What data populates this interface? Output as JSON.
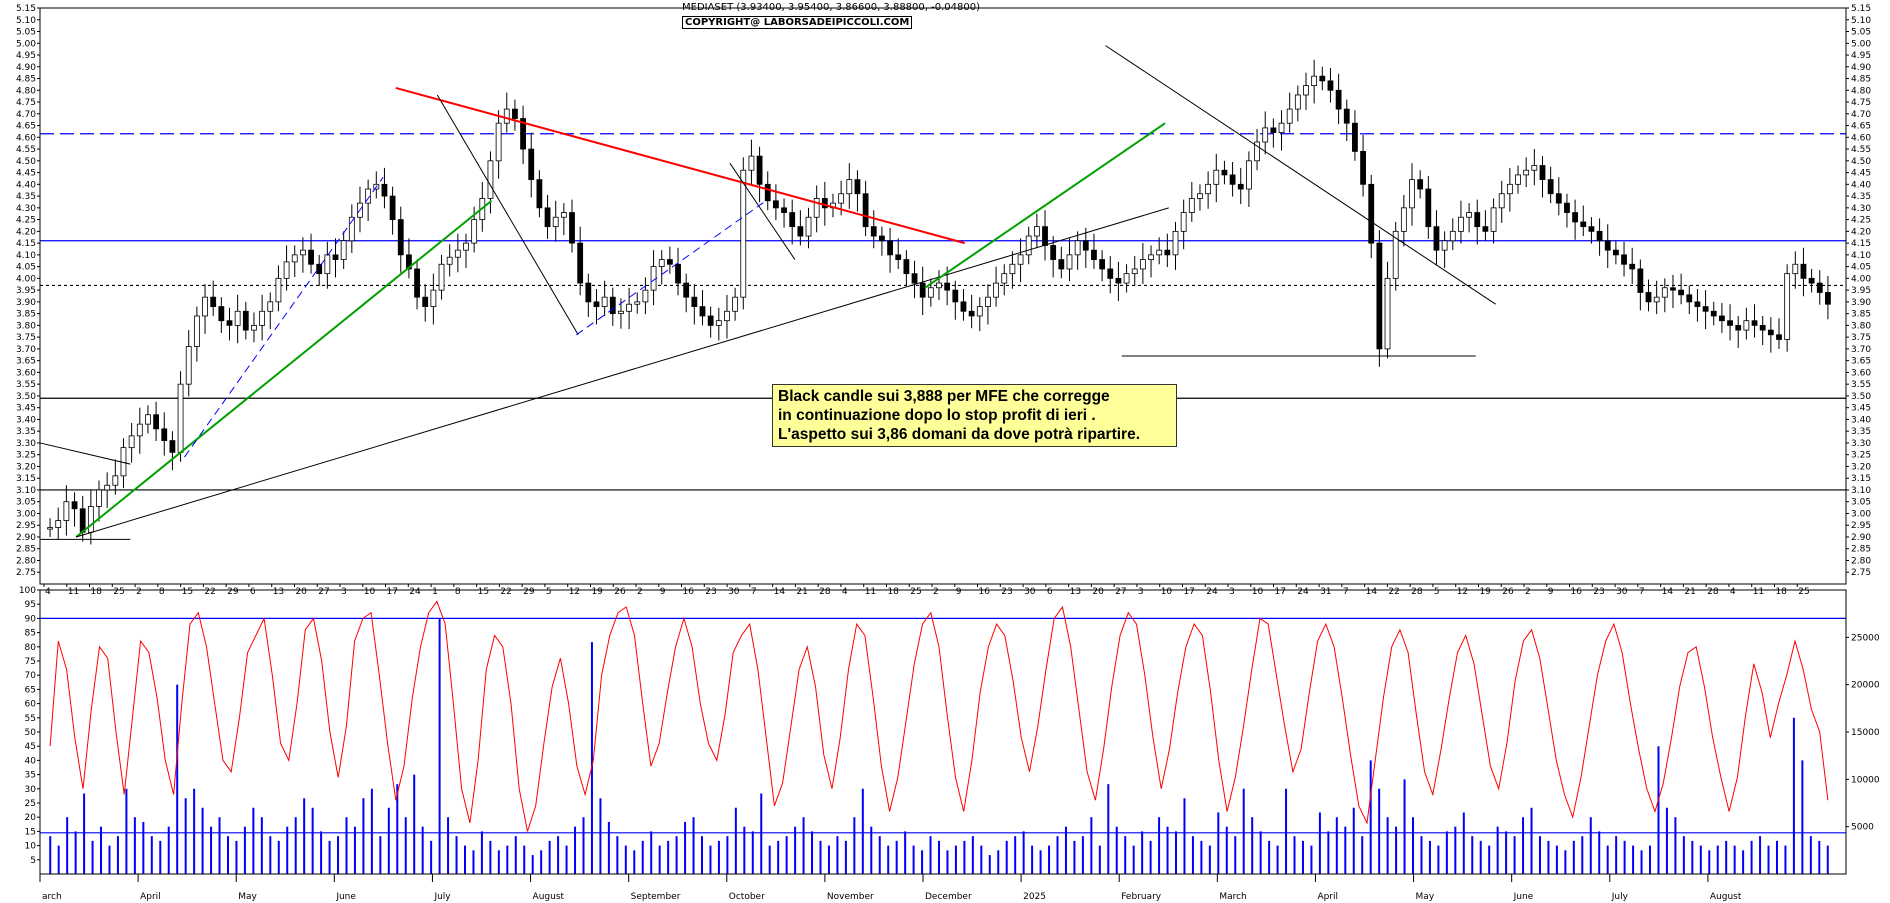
{
  "header": {
    "title": "MEDIASET (3.93400, 3.95400, 3.86600, 3.88800, -0.04800)",
    "copyright": "COPYRIGHT@ LABORSADEIPICCOLI.COM"
  },
  "annotation": {
    "lines": [
      "Black candle sui 3,888 per MFE che corregge",
      "in continuazione dopo lo stop profit di ieri .",
      "L'aspetto sui 3,86 domani da dove potrà ripartire."
    ]
  },
  "colors": {
    "candle": "#000000",
    "trend_red": "#ff0000",
    "trend_green": "#00a000",
    "blue_line": "#0000ff",
    "oscillator": "#ff0000",
    "volume": "#0000ff",
    "grid": "#000000"
  },
  "chart_data": [
    {
      "type": "candlestick",
      "title": "MEDIASET",
      "ylim": [
        2.7,
        5.15
      ],
      "y_ticks": [
        "5.15",
        "5.10",
        "5.05",
        "5.00",
        "4.95",
        "4.90",
        "4.85",
        "4.80",
        "4.75",
        "4.70",
        "4.65",
        "4.60",
        "4.55",
        "4.50",
        "4.45",
        "4.40",
        "4.35",
        "4.30",
        "4.25",
        "4.20",
        "4.15",
        "4.10",
        "4.05",
        "4.00",
        "3.95",
        "3.90",
        "3.85",
        "3.80",
        "3.75",
        "3.70",
        "3.65",
        "3.60",
        "3.55",
        "3.50",
        "3.45",
        "3.40",
        "3.35",
        "3.30",
        "3.25",
        "3.20",
        "3.15",
        "3.10",
        "3.05",
        "3.00",
        "2.95",
        "2.90",
        "2.85",
        "2.80",
        "2.75"
      ],
      "months": [
        "arch",
        "April",
        "May",
        "June",
        "July",
        "August",
        "September",
        "October",
        "November",
        "December",
        "2025",
        "February",
        "March",
        "April",
        "May",
        "June",
        "July",
        "August"
      ],
      "day_ticks": [
        "4",
        "11",
        "18",
        "25",
        "2",
        "8",
        "15",
        "22",
        "29",
        "6",
        "13",
        "20",
        "27",
        "3",
        "10",
        "17",
        "24",
        "1",
        "8",
        "15",
        "22",
        "29",
        "5",
        "12",
        "19",
        "26",
        "2",
        "9",
        "16",
        "23",
        "30",
        "7",
        "14",
        "21",
        "28",
        "4",
        "11",
        "18",
        "25",
        "2",
        "9",
        "16",
        "23",
        "30",
        "6",
        "13",
        "20",
        "27",
        "3",
        "10",
        "17",
        "24",
        "3",
        "10",
        "17",
        "24",
        "31",
        "7",
        "14",
        "22",
        "28",
        "5",
        "12",
        "19",
        "26",
        "2",
        "9",
        "16",
        "23",
        "30",
        "7",
        "14",
        "21",
        "28",
        "4",
        "11",
        "18",
        "25"
      ],
      "horizontal_lines": [
        {
          "value": 4.615,
          "style": "dashed",
          "color": "blue"
        },
        {
          "value": 4.16,
          "style": "solid",
          "color": "blue"
        },
        {
          "value": 3.97,
          "style": "dotted",
          "color": "black"
        },
        {
          "value": 3.49,
          "style": "solid",
          "color": "black"
        },
        {
          "value": 3.1,
          "style": "solid",
          "color": "black"
        }
      ],
      "trendlines": [
        {
          "color": "red",
          "from": [
            0.197,
            4.81
          ],
          "to": [
            0.512,
            4.15
          ]
        },
        {
          "color": "green",
          "from": [
            0.02,
            2.9
          ],
          "to": [
            0.25,
            4.33
          ]
        },
        {
          "color": "black",
          "from": [
            0.02,
            2.9
          ],
          "to": [
            0.625,
            4.3
          ]
        },
        {
          "color": "black",
          "from": [
            0.0,
            3.3
          ],
          "to": [
            0.05,
            3.21
          ]
        },
        {
          "color": "black",
          "from": [
            0.59,
            4.99
          ],
          "to": [
            0.806,
            3.89
          ]
        },
        {
          "color": "black",
          "from": [
            0.22,
            4.78
          ],
          "to": [
            0.298,
            3.76
          ]
        },
        {
          "color": "black",
          "from": [
            0.382,
            4.49
          ],
          "to": [
            0.418,
            4.08
          ]
        },
        {
          "color": "black",
          "from": [
            0.599,
            3.67
          ],
          "to": [
            0.795,
            3.67
          ]
        },
        {
          "color": "black",
          "from": [
            0.0,
            2.89
          ],
          "to": [
            0.05,
            2.89
          ]
        },
        {
          "color": "green",
          "from": [
            0.49,
            3.96
          ],
          "to": [
            0.623,
            4.66
          ]
        },
        {
          "color": "blue",
          "style": "dashed",
          "from": [
            0.08,
            3.24
          ],
          "to": [
            0.19,
            4.43
          ]
        },
        {
          "color": "blue",
          "style": "dashed",
          "from": [
            0.297,
            3.76
          ],
          "to": [
            0.402,
            4.33
          ]
        }
      ],
      "series": [
        {
          "name": "MEDIASET",
          "close": [
            2.94,
            2.97,
            3.05,
            3.02,
            2.92,
            3.03,
            3.1,
            3.12,
            3.16,
            3.28,
            3.33,
            3.38,
            3.42,
            3.36,
            3.31,
            3.26,
            3.55,
            3.71,
            3.84,
            3.92,
            3.88,
            3.82,
            3.8,
            3.86,
            3.78,
            3.8,
            3.86,
            3.9,
            4.0,
            4.07,
            4.1,
            4.12,
            4.06,
            4.02,
            4.1,
            4.08,
            4.16,
            4.26,
            4.32,
            4.38,
            4.4,
            4.35,
            4.25,
            4.1,
            4.04,
            3.92,
            3.88,
            3.95,
            4.06,
            4.09,
            4.12,
            4.15,
            4.25,
            4.34,
            4.5,
            4.66,
            4.72,
            4.68,
            4.55,
            4.42,
            4.3,
            4.22,
            4.26,
            4.28,
            4.15,
            3.98,
            3.9,
            3.88,
            3.92,
            3.85,
            3.86,
            3.89,
            3.9,
            3.95,
            4.05,
            4.08,
            4.06,
            3.98,
            3.92,
            3.88,
            3.84,
            3.8,
            3.82,
            3.86,
            3.92,
            4.46,
            4.52,
            4.4,
            4.33,
            4.3,
            4.28,
            4.22,
            4.18,
            4.26,
            4.34,
            4.3,
            4.32,
            4.36,
            4.42,
            4.36,
            4.22,
            4.18,
            4.16,
            4.1,
            4.08,
            4.02,
            3.98,
            3.92,
            3.96,
            3.98,
            3.95,
            3.9,
            3.86,
            3.84,
            3.88,
            3.92,
            3.98,
            4.02,
            4.06,
            4.1,
            4.18,
            4.22,
            4.14,
            4.08,
            4.04,
            4.1,
            4.16,
            4.12,
            4.08,
            4.04,
            4.0,
            3.98,
            4.02,
            4.04,
            4.08,
            4.1,
            4.12,
            4.1,
            4.2,
            4.28,
            4.34,
            4.36,
            4.4,
            4.46,
            4.44,
            4.4,
            4.38,
            4.5,
            4.58,
            4.64,
            4.62,
            4.66,
            4.72,
            4.78,
            4.82,
            4.86,
            4.84,
            4.8,
            4.72,
            4.66,
            4.54,
            4.4,
            4.15,
            3.7,
            4.0,
            4.2,
            4.3,
            4.42,
            4.38,
            4.22,
            4.12,
            4.16,
            4.2,
            4.26,
            4.28,
            4.22,
            4.2,
            4.3,
            4.36,
            4.4,
            4.44,
            4.46,
            4.48,
            4.42,
            4.36,
            4.32,
            4.28,
            4.24,
            4.22,
            4.2,
            4.16,
            4.12,
            4.1,
            4.06,
            4.04,
            3.94,
            3.9,
            3.92,
            3.96,
            3.95,
            3.93,
            3.9,
            3.88,
            3.86,
            3.84,
            3.82,
            3.8,
            3.78,
            3.82,
            3.8,
            3.78,
            3.76,
            3.74,
            4.02,
            4.06,
            4.0,
            3.98,
            3.94,
            3.89
          ]
        }
      ]
    },
    {
      "type": "line+bar",
      "ylim_left": [
        0,
        100
      ],
      "y_ticks_left": [
        "100",
        "95",
        "90",
        "85",
        "80",
        "75",
        "70",
        "65",
        "60",
        "55",
        "50",
        "45",
        "40",
        "35",
        "30",
        "25",
        "20",
        "15",
        "10",
        "5"
      ],
      "y_ticks_right": [
        "25000",
        "20000",
        "15000",
        "10000",
        "5000"
      ],
      "ylim_right": [
        0,
        30000
      ],
      "horizontal_lines": [
        {
          "value": 90,
          "color": "blue"
        },
        {
          "value": 14.5,
          "color": "blue"
        }
      ],
      "series": [
        {
          "name": "oscillator",
          "values": [
            45,
            82,
            72,
            48,
            30,
            58,
            80,
            76,
            50,
            28,
            55,
            82,
            78,
            62,
            40,
            28,
            60,
            88,
            92,
            80,
            60,
            40,
            36,
            55,
            78,
            84,
            90,
            70,
            46,
            40,
            60,
            86,
            90,
            75,
            50,
            34,
            52,
            82,
            90,
            92,
            70,
            46,
            26,
            38,
            62,
            80,
            92,
            96,
            88,
            60,
            30,
            18,
            40,
            72,
            84,
            80,
            60,
            30,
            15,
            24,
            46,
            66,
            76,
            60,
            38,
            28,
            40,
            70,
            84,
            92,
            94,
            84,
            60,
            38,
            46,
            64,
            80,
            90,
            80,
            60,
            46,
            40,
            56,
            78,
            84,
            88,
            72,
            48,
            24,
            32,
            52,
            72,
            80,
            66,
            42,
            30,
            48,
            72,
            88,
            84,
            62,
            38,
            22,
            34,
            54,
            74,
            88,
            92,
            80,
            56,
            34,
            22,
            40,
            64,
            80,
            88,
            84,
            68,
            48,
            36,
            52,
            72,
            90,
            94,
            80,
            58,
            36,
            26,
            44,
            66,
            84,
            92,
            88,
            70,
            48,
            30,
            44,
            64,
            80,
            88,
            84,
            64,
            40,
            22,
            34,
            52,
            72,
            90,
            88,
            70,
            52,
            36,
            44,
            64,
            82,
            88,
            80,
            62,
            42,
            24,
            18,
            40,
            62,
            80,
            86,
            78,
            56,
            36,
            28,
            44,
            62,
            78,
            84,
            74,
            56,
            38,
            30,
            46,
            68,
            82,
            86,
            76,
            58,
            40,
            28,
            20,
            34,
            52,
            70,
            82,
            88,
            78,
            60,
            44,
            30,
            22,
            32,
            48,
            66,
            78,
            80,
            66,
            48,
            34,
            22,
            34,
            56,
            74,
            64,
            48,
            60,
            70,
            82,
            72,
            58,
            50,
            26
          ]
        },
        {
          "name": "volume",
          "values": [
            4000,
            3000,
            6000,
            4500,
            8500,
            3500,
            5000,
            3000,
            4000,
            9000,
            6000,
            5500,
            4000,
            3500,
            5000,
            20000,
            8000,
            9000,
            7000,
            5000,
            6000,
            4000,
            3500,
            5000,
            7000,
            6000,
            4000,
            3500,
            5000,
            6000,
            8000,
            7000,
            4500,
            3500,
            4000,
            6000,
            5000,
            8000,
            9000,
            4000,
            7000,
            9500,
            6000,
            10500,
            5000,
            3500,
            27000,
            6000,
            4000,
            3000,
            2500,
            4500,
            3500,
            2500,
            3000,
            4000,
            3000,
            2000,
            2500,
            3500,
            4000,
            3000,
            5000,
            6000,
            24500,
            8000,
            5500,
            4000,
            3000,
            2500,
            3500,
            4500,
            3000,
            3500,
            4000,
            5500,
            6000,
            4000,
            3000,
            3500,
            4000,
            7000,
            5000,
            4500,
            8500,
            3000,
            3500,
            4000,
            5000,
            6000,
            4500,
            3500,
            3000,
            4000,
            3500,
            6000,
            9000,
            5000,
            4000,
            3000,
            3500,
            4500,
            3000,
            2500,
            4000,
            3500,
            2500,
            3000,
            3500,
            4000,
            3000,
            2000,
            2500,
            3500,
            4000,
            4500,
            3000,
            2500,
            3000,
            4000,
            5000,
            3500,
            4000,
            6000,
            3000,
            9500,
            5000,
            4000,
            3000,
            4500,
            3500,
            6000,
            5000,
            4500,
            8000,
            4000,
            3500,
            3000,
            6500,
            5000,
            4000,
            9000,
            6000,
            4500,
            3500,
            3000,
            9000,
            4000,
            3500,
            3000,
            6500,
            4500,
            6000,
            5000,
            7000,
            4000,
            12000,
            9000,
            6000,
            5000,
            10000,
            6000,
            4000,
            3500,
            3000,
            4500,
            5000,
            6500,
            4000,
            3500,
            3000,
            5000,
            4500,
            4000,
            6000,
            7000,
            4000,
            3500,
            3000,
            2500,
            3500,
            4000,
            6000,
            4500,
            3000,
            4000,
            3500,
            3000,
            2500,
            3000,
            13500,
            7000,
            6000,
            4000,
            3500,
            3000,
            2500,
            3000,
            3500,
            3000,
            2500,
            3500,
            4000,
            3000,
            3500,
            3000,
            16500,
            12000,
            4000,
            3500,
            3000
          ]
        }
      ]
    }
  ]
}
